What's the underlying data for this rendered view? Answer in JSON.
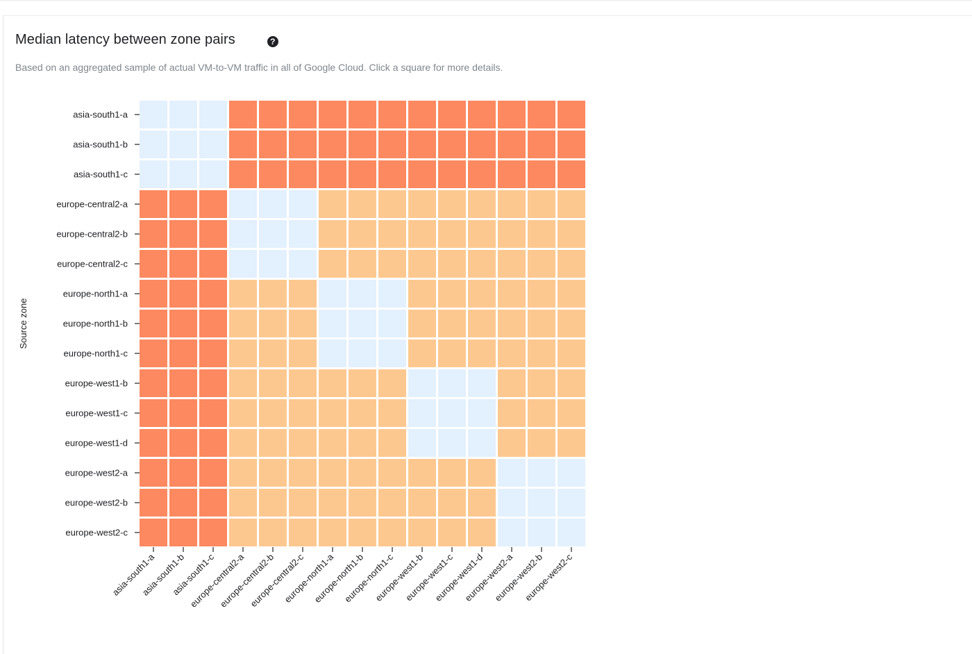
{
  "header": {
    "title": "Median latency between zone pairs",
    "help_icon": "question-circle-icon",
    "subtitle": "Based on an aggregated sample of actual VM-to-VM traffic in all of Google Cloud. Click a square for more details."
  },
  "chart_data": {
    "type": "heatmap",
    "title": "Median latency between zone pairs",
    "ylabel": "Source zone",
    "xlabel": "",
    "rows": [
      "asia-south1-a",
      "asia-south1-b",
      "asia-south1-c",
      "europe-central2-a",
      "europe-central2-b",
      "europe-central2-c",
      "europe-north1-a",
      "europe-north1-b",
      "europe-north1-c",
      "europe-west1-b",
      "europe-west1-c",
      "europe-west1-d",
      "europe-west2-a",
      "europe-west2-b",
      "europe-west2-c"
    ],
    "columns": [
      "asia-south1-a",
      "asia-south1-b",
      "asia-south1-c",
      "europe-central2-a",
      "europe-central2-b",
      "europe-central2-c",
      "europe-north1-a",
      "europe-north1-b",
      "europe-north1-c",
      "europe-west1-b",
      "europe-west1-c",
      "europe-west1-d",
      "europe-west2-a",
      "europe-west2-b",
      "europe-west2-c"
    ],
    "level_colors": {
      "0": "#e3f0fd",
      "1": "#fdc88f",
      "2": "#fc8960"
    },
    "levels": [
      [
        0,
        0,
        0,
        2,
        2,
        2,
        2,
        2,
        2,
        2,
        2,
        2,
        2,
        2,
        2
      ],
      [
        0,
        0,
        0,
        2,
        2,
        2,
        2,
        2,
        2,
        2,
        2,
        2,
        2,
        2,
        2
      ],
      [
        0,
        0,
        0,
        2,
        2,
        2,
        2,
        2,
        2,
        2,
        2,
        2,
        2,
        2,
        2
      ],
      [
        2,
        2,
        2,
        0,
        0,
        0,
        1,
        1,
        1,
        1,
        1,
        1,
        1,
        1,
        1
      ],
      [
        2,
        2,
        2,
        0,
        0,
        0,
        1,
        1,
        1,
        1,
        1,
        1,
        1,
        1,
        1
      ],
      [
        2,
        2,
        2,
        0,
        0,
        0,
        1,
        1,
        1,
        1,
        1,
        1,
        1,
        1,
        1
      ],
      [
        2,
        2,
        2,
        1,
        1,
        1,
        0,
        0,
        0,
        1,
        1,
        1,
        1,
        1,
        1
      ],
      [
        2,
        2,
        2,
        1,
        1,
        1,
        0,
        0,
        0,
        1,
        1,
        1,
        1,
        1,
        1
      ],
      [
        2,
        2,
        2,
        1,
        1,
        1,
        0,
        0,
        0,
        1,
        1,
        1,
        1,
        1,
        1
      ],
      [
        2,
        2,
        2,
        1,
        1,
        1,
        1,
        1,
        1,
        0,
        0,
        0,
        1,
        1,
        1
      ],
      [
        2,
        2,
        2,
        1,
        1,
        1,
        1,
        1,
        1,
        0,
        0,
        0,
        1,
        1,
        1
      ],
      [
        2,
        2,
        2,
        1,
        1,
        1,
        1,
        1,
        1,
        0,
        0,
        0,
        1,
        1,
        1
      ],
      [
        2,
        2,
        2,
        1,
        1,
        1,
        1,
        1,
        1,
        1,
        1,
        1,
        0,
        0,
        0
      ],
      [
        2,
        2,
        2,
        1,
        1,
        1,
        1,
        1,
        1,
        1,
        1,
        1,
        0,
        0,
        0
      ],
      [
        2,
        2,
        2,
        1,
        1,
        1,
        1,
        1,
        1,
        1,
        1,
        1,
        0,
        0,
        0
      ]
    ]
  }
}
